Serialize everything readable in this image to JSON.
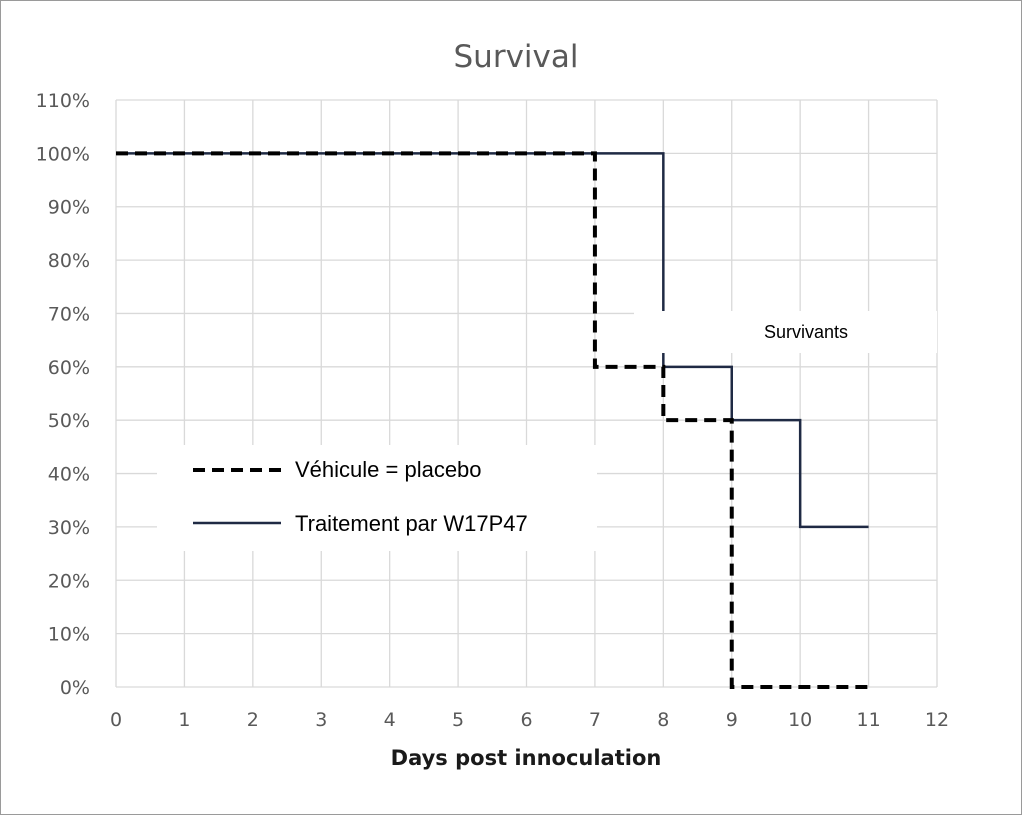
{
  "chart_data": {
    "type": "line",
    "title": "Survival",
    "xlabel": "Days post innoculation",
    "ylabel": "",
    "xlim": [
      0,
      12
    ],
    "ylim": [
      0,
      110
    ],
    "x_ticks": [
      0,
      1,
      2,
      3,
      4,
      5,
      6,
      7,
      8,
      9,
      10,
      11,
      12
    ],
    "y_ticks": [
      0,
      10,
      20,
      30,
      40,
      50,
      60,
      70,
      80,
      90,
      100,
      110
    ],
    "y_tick_labels": [
      "0%",
      "10%",
      "20%",
      "30%",
      "40%",
      "50%",
      "60%",
      "70%",
      "80%",
      "90%",
      "100%",
      "110%"
    ],
    "grid": true,
    "step": true,
    "legend_position": "left-middle",
    "annotation": "Survivants",
    "series": [
      {
        "name": "Véhicule = placebo",
        "style": "dashed",
        "color": "#000000",
        "x": [
          0,
          7,
          8,
          9,
          11
        ],
        "y": [
          100,
          60,
          50,
          0,
          0
        ]
      },
      {
        "name": "Traitement par W17P47",
        "style": "solid",
        "color": "#1f2a44",
        "x": [
          0,
          8,
          9,
          10,
          11
        ],
        "y": [
          100,
          60,
          50,
          30,
          30
        ]
      }
    ]
  }
}
